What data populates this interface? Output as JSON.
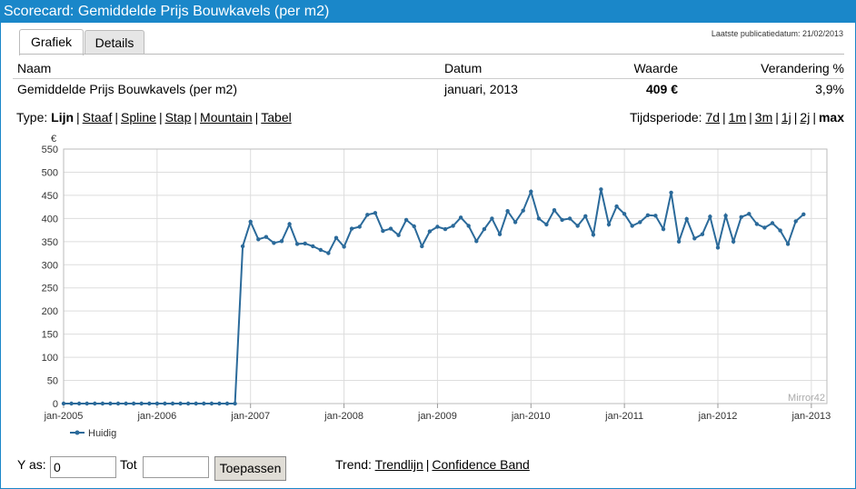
{
  "window": {
    "title": "Scorecard: Gemiddelde Prijs Bouwkavels (per m2)"
  },
  "tabs": [
    {
      "label": "Grafiek"
    },
    {
      "label": "Details"
    }
  ],
  "publication": "Laatste publicatiedatum: 21/02/2013",
  "table": {
    "headers": {
      "name": "Naam",
      "date": "Datum",
      "value": "Waarde",
      "change": "Verandering %"
    },
    "row": {
      "name": "Gemiddelde Prijs Bouwkavels (per m2)",
      "date": "januari, 2013",
      "value": "409 €",
      "change": "3,9%"
    }
  },
  "type_bar": {
    "label": "Type:",
    "options": [
      "Lijn",
      "Staaf",
      "Spline",
      "Stap",
      "Mountain",
      "Tabel"
    ],
    "selected": "Lijn"
  },
  "period_bar": {
    "label": "Tijdsperiode:",
    "options": [
      "7d",
      "1m",
      "3m",
      "1j",
      "2j",
      "max"
    ],
    "selected": "max"
  },
  "chart_data": {
    "type": "line",
    "ylabel": "€",
    "ylim": [
      0,
      550
    ],
    "yticks": [
      0,
      50,
      100,
      150,
      200,
      250,
      300,
      350,
      400,
      450,
      500,
      550
    ],
    "xticks": [
      "jan-2005",
      "jan-2006",
      "jan-2007",
      "jan-2008",
      "jan-2009",
      "jan-2010",
      "jan-2011",
      "jan-2012",
      "jan-2013"
    ],
    "grid": true,
    "legend_position": "bottom-left",
    "watermark": "Mirror42",
    "color": "#2b6a9a",
    "series": [
      {
        "name": "Huidig",
        "x_start": "jan-2005",
        "x_step": "1 month",
        "values": [
          0,
          0,
          0,
          0,
          0,
          0,
          0,
          0,
          0,
          0,
          0,
          0,
          0,
          0,
          0,
          0,
          0,
          0,
          0,
          0,
          0,
          0,
          0,
          340,
          393,
          355,
          360,
          347,
          351,
          388,
          345,
          346,
          340,
          332,
          325,
          358,
          339,
          378,
          382,
          408,
          412,
          373,
          378,
          364,
          397,
          383,
          340,
          372,
          382,
          377,
          384,
          402,
          384,
          351,
          377,
          400,
          366,
          416,
          392,
          417,
          458,
          400,
          387,
          418,
          397,
          400,
          384,
          405,
          365,
          463,
          387,
          426,
          410,
          384,
          392,
          407,
          406,
          377,
          456,
          350,
          399,
          357,
          366,
          404,
          337,
          406,
          350,
          403,
          410,
          388,
          380,
          390,
          374,
          345,
          394,
          409
        ]
      }
    ]
  },
  "controls": {
    "y_as_label": "Y as:",
    "y_from_value": "0",
    "tot_label": "Tot",
    "tot_value": "",
    "apply_label": "Toepassen",
    "trend_label": "Trend:",
    "trend_options": [
      "Trendlijn",
      "Confidence Band"
    ]
  }
}
